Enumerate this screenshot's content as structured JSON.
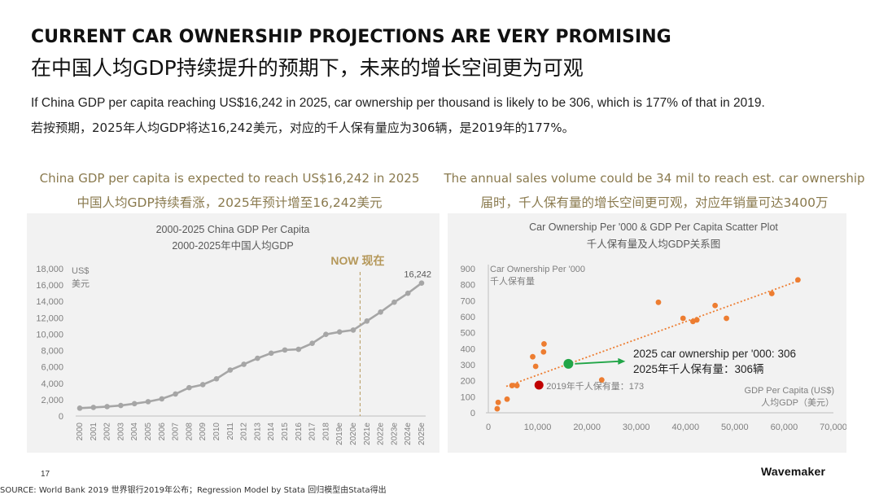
{
  "header": {
    "title_en": "CURRENT CAR OWNERSHIP PROJECTIONS ARE VERY PROMISING",
    "title_zh": "在中国人均GDP持续提升的预期下，未来的增长空间更为可观",
    "subtitle_en": "If China GDP per capita reaching US$16,242 in 2025, car ownership per thousand is likely to be 306, which is 177% of that in 2019.",
    "subtitle_zh": "若按预期，2025年人均GDP将达16,242美元，对应的千人保有量应为306辆，是2019年的177%。"
  },
  "left_caption": {
    "en": "China GDP per capita is expected to reach US$16,242 in 2025",
    "zh": "中国人均GDP持续看涨，2025年预计增至16,242美元"
  },
  "right_caption": {
    "en": "The annual sales volume could be 34 mil to reach est. car ownership",
    "zh": "届时，千人保有量的增长空间更可观，对应年销量可达3400万"
  },
  "footer": {
    "page_number": "17",
    "source": "SOURCE: World Bank 2019 世界银行2019年公布；Regression Model by Stata 回归模型由Stata得出",
    "logo": "Wavemaker"
  },
  "colors": {
    "line": "#a6a6a6",
    "scatter": "#ed7d31",
    "highlight_green": "#21a547",
    "highlight_red": "#c00000",
    "now_label": "#b5985a"
  },
  "chart_data": [
    {
      "type": "line",
      "title": "2000-2025 China GDP Per Capita",
      "subtitle": "2000-2025年中国人均GDP",
      "ylabel_en": "US$",
      "ylabel_zh": "美元",
      "ylim": [
        0,
        18000
      ],
      "yticks": [
        0,
        2000,
        4000,
        6000,
        8000,
        10000,
        12000,
        14000,
        16000,
        18000
      ],
      "ytick_labels": [
        "0",
        "2,000",
        "4,000",
        "6,000",
        "8,000",
        "10,000",
        "12,000",
        "14,000",
        "16,000",
        "18,000"
      ],
      "categories": [
        "2000",
        "2001",
        "2002",
        "2003",
        "2004",
        "2005",
        "2006",
        "2007",
        "2008",
        "2009",
        "2010",
        "2011",
        "2012",
        "2013",
        "2014",
        "2015",
        "2016",
        "2017",
        "2018",
        "2019e",
        "2020e",
        "2021e",
        "2022e",
        "2023e",
        "2024e",
        "2025e"
      ],
      "values": [
        959,
        1053,
        1149,
        1289,
        1509,
        1753,
        2099,
        2693,
        3468,
        3832,
        4550,
        5618,
        6317,
        7051,
        7679,
        8067,
        8148,
        8879,
        9977,
        10276,
        10500,
        11600,
        12700,
        13900,
        15000,
        16242
      ],
      "now_label": "NOW 现在",
      "now_after_category": "2020e",
      "end_label": "16,242"
    },
    {
      "type": "scatter",
      "title": "Car Ownership Per '000 & GDP Per Capita Scatter Plot",
      "subtitle": "千人保有量及人均GDP关系图",
      "ylabel_en": "Car Ownership Per '000",
      "ylabel_zh": "千人保有量",
      "xlabel_en": "GDP Per Capita (US$)",
      "xlabel_zh": "人均GDP（美元）",
      "xlim": [
        0,
        70000
      ],
      "ylim": [
        0,
        900
      ],
      "xticks": [
        0,
        10000,
        20000,
        30000,
        40000,
        50000,
        60000,
        70000
      ],
      "xtick_labels": [
        "0",
        "10,000",
        "20,000",
        "30,000",
        "40,000",
        "50,000",
        "60,000",
        "70,000"
      ],
      "yticks": [
        0,
        100,
        200,
        300,
        400,
        500,
        600,
        700,
        800,
        900
      ],
      "ytick_labels": [
        "0",
        "100",
        "200",
        "300",
        "400",
        "500",
        "600",
        "700",
        "800",
        "900"
      ],
      "points": [
        {
          "x": 1800,
          "y": 25
        },
        {
          "x": 2000,
          "y": 65
        },
        {
          "x": 3800,
          "y": 85
        },
        {
          "x": 4800,
          "y": 170
        },
        {
          "x": 5800,
          "y": 170
        },
        {
          "x": 9000,
          "y": 350
        },
        {
          "x": 9600,
          "y": 290
        },
        {
          "x": 11200,
          "y": 380
        },
        {
          "x": 11300,
          "y": 430
        },
        {
          "x": 23000,
          "y": 205
        },
        {
          "x": 34500,
          "y": 690
        },
        {
          "x": 39500,
          "y": 590
        },
        {
          "x": 41500,
          "y": 570
        },
        {
          "x": 42300,
          "y": 580
        },
        {
          "x": 46000,
          "y": 670
        },
        {
          "x": 48300,
          "y": 590
        },
        {
          "x": 57500,
          "y": 745
        },
        {
          "x": 62800,
          "y": 830
        }
      ],
      "trend": {
        "x0": 0,
        "y0": 135,
        "x1": 63000,
        "y1": 825
      },
      "highlight_2019": {
        "x": 10276,
        "y": 173,
        "label": "2019年千人保有量：173"
      },
      "highlight_2025": {
        "x": 16242,
        "y": 306,
        "label_en": "2025 car ownership per '000: 306",
        "label_zh": "2025年千人保有量：306辆"
      }
    }
  ]
}
